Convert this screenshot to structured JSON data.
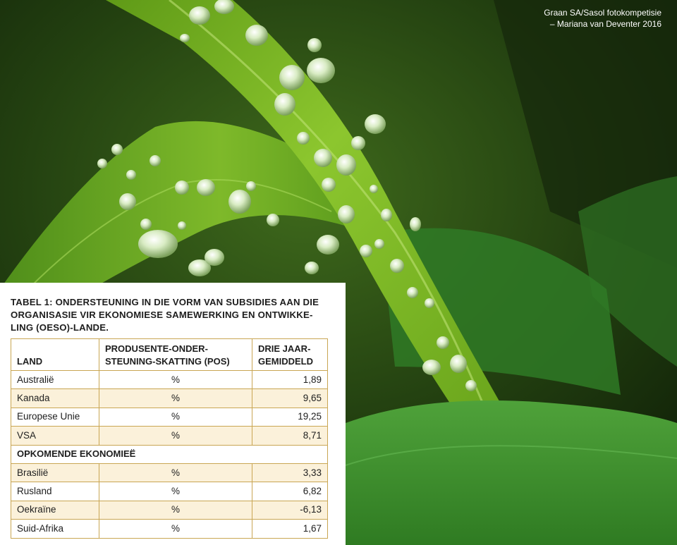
{
  "photo_credit": {
    "line1": "Graan SA/Sasol fotokompetisie",
    "line2": "– Mariana van Deventer 2016"
  },
  "table": {
    "title": "TABEL 1: ONDERSTEUNING IN DIE VORM VAN SUBSIDIES AAN DIE ORGANISASIE VIR EKONOMIESE SAMEWERKING EN ONTWIKKE-LING (OESO)-LANDE.",
    "headers": {
      "land": "LAND",
      "pos": "PRODUSENTE-ONDER-STEUNING-SKATTING (POS)",
      "avg": "DRIE JAAR-GEMIDDELD"
    },
    "rows": [
      {
        "land": "Australië",
        "unit": "%",
        "value": "1,89"
      },
      {
        "land": "Kanada",
        "unit": "%",
        "value": "9,65"
      },
      {
        "land": "Europese Unie",
        "unit": "%",
        "value": "19,25"
      },
      {
        "land": "VSA",
        "unit": "%",
        "value": "8,71"
      }
    ],
    "section_label": "OPKOMENDE EKONOMIEË",
    "emerging_rows": [
      {
        "land": "Brasilië",
        "unit": "%",
        "value": "3,33"
      },
      {
        "land": "Rusland",
        "unit": "%",
        "value": "6,82"
      },
      {
        "land": "Oekraïne",
        "unit": "%",
        "value": "-6,13"
      },
      {
        "land": "Suid-Afrika",
        "unit": "%",
        "value": "1,67"
      }
    ]
  },
  "colors": {
    "table_border": "#c9a653",
    "row_tint": "#fbf1da",
    "leaf_green": "#7fbf2a"
  }
}
